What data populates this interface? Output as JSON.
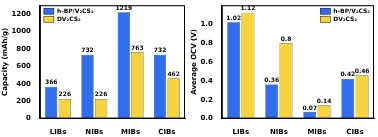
{
  "chart_data": [
    {
      "type": "bar",
      "ylabel": "Capacity (mAh/g)",
      "categories": [
        "LIBs",
        "NIBs",
        "MIBs",
        "CIBs"
      ],
      "series": [
        {
          "name": "h-BP/V₂CS₂",
          "color": "#2f6fef",
          "values": [
            366,
            732,
            1219,
            732
          ]
        },
        {
          "name": "DV₂CS₂",
          "color": "#f7d43c",
          "values": [
            226,
            226,
            763,
            462
          ]
        }
      ],
      "ylim": [
        0,
        1300
      ],
      "yticks": [
        0,
        200,
        400,
        600,
        800,
        1000,
        1200
      ],
      "grid": false,
      "legend": "upper left",
      "data_labels": true
    },
    {
      "type": "bar",
      "ylabel": "Average OCV (V)",
      "categories": [
        "LIBs",
        "NIBs",
        "MIBs",
        "CIBs"
      ],
      "series": [
        {
          "name": "h-BP/V₂CS₂",
          "color": "#2f6fef",
          "values": [
            1.02,
            0.36,
            0.07,
            0.42
          ]
        },
        {
          "name": "DV₂CS₂",
          "color": "#f7d43c",
          "values": [
            1.12,
            0.8,
            0.14,
            0.46
          ]
        }
      ],
      "ylim": [
        0,
        1.2
      ],
      "yticks": [
        {
          "value": 0,
          "label": "0.0"
        },
        0.2,
        0.4,
        0.6,
        0.8,
        {
          "value": 1,
          "label": "1.0"
        }
      ],
      "grid": false,
      "legend": "upper right",
      "data_labels": true
    }
  ]
}
